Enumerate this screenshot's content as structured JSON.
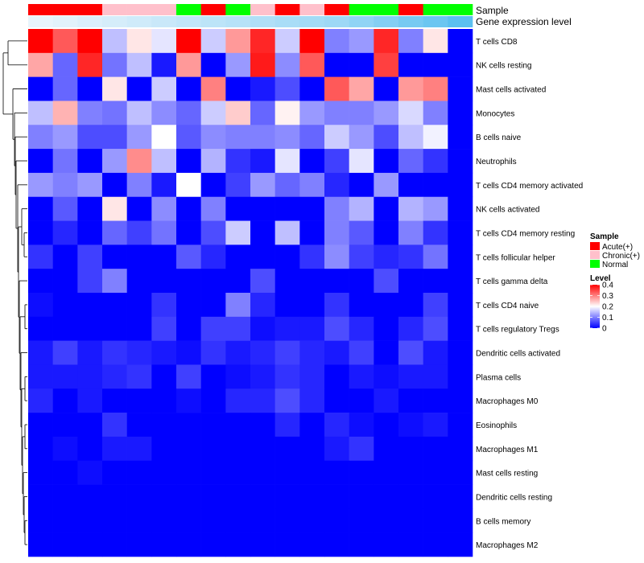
{
  "chart_data": {
    "type": "heatmap",
    "title": "",
    "annotation_labels": {
      "sample": "Sample",
      "gene_expression": "Gene expression level"
    },
    "sample_groups": [
      "Acute(+)",
      "Acute(+)",
      "Acute(+)",
      "Chronic(+)",
      "Chronic(+)",
      "Chronic(+)",
      "Normal",
      "Acute(+)",
      "Normal",
      "Chronic(+)",
      "Acute(+)",
      "Chronic(+)",
      "Acute(+)",
      "Normal",
      "Normal",
      "Acute(+)",
      "Normal",
      "Normal"
    ],
    "gene_expression_level": [
      0.1,
      0.12,
      0.14,
      0.16,
      0.18,
      0.2,
      0.22,
      0.24,
      0.26,
      0.28,
      0.3,
      0.32,
      0.34,
      0.38,
      0.42,
      0.46,
      0.5,
      0.55
    ],
    "rows": [
      "T cells CD8",
      "NK cells resting",
      "Mast cells activated",
      "Monocytes",
      "B cells naive",
      "Neutrophils",
      "T cells CD4 memory activated",
      "NK cells activated",
      "T cells CD4 memory resting",
      "T cells follicular helper",
      "T cells gamma delta",
      "T cells CD4 naive",
      "T cells regulatory  Tregs",
      "Dendritic cells activated",
      "Plasma cells",
      "Macrophages M0",
      "Eosinophils",
      "Macrophages M1",
      "Mast cells resting",
      "Dendritic cells resting",
      "B cells memory",
      "Macrophages M2"
    ],
    "values": [
      [
        0.42,
        0.33,
        0.42,
        0.15,
        0.22,
        0.18,
        0.42,
        0.16,
        0.28,
        0.37,
        0.16,
        0.42,
        0.1,
        0.12,
        0.37,
        0.1,
        0.22,
        0.0
      ],
      [
        0.27,
        0.08,
        0.37,
        0.09,
        0.15,
        0.02,
        0.28,
        0.0,
        0.12,
        0.38,
        0.11,
        0.33,
        0.0,
        0.0,
        0.35,
        0.0,
        0.0,
        0.0
      ],
      [
        0.0,
        0.08,
        0.0,
        0.22,
        0.0,
        0.16,
        0.0,
        0.3,
        0.0,
        0.02,
        0.06,
        0.0,
        0.33,
        0.27,
        0.0,
        0.28,
        0.3,
        0.0
      ],
      [
        0.15,
        0.26,
        0.1,
        0.09,
        0.15,
        0.11,
        0.08,
        0.16,
        0.24,
        0.08,
        0.21,
        0.12,
        0.1,
        0.1,
        0.12,
        0.17,
        0.1,
        0.0
      ],
      [
        0.1,
        0.12,
        0.06,
        0.06,
        0.12,
        0.2,
        0.07,
        0.11,
        0.1,
        0.1,
        0.11,
        0.08,
        0.16,
        0.12,
        0.06,
        0.15,
        0.19,
        0.0
      ],
      [
        0.0,
        0.09,
        0.0,
        0.12,
        0.29,
        0.15,
        0.0,
        0.14,
        0.04,
        0.02,
        0.18,
        0.0,
        0.05,
        0.18,
        0.0,
        0.08,
        0.04,
        0.0
      ],
      [
        0.12,
        0.1,
        0.12,
        0.0,
        0.1,
        0.02,
        0.2,
        0.0,
        0.05,
        0.12,
        0.08,
        0.1,
        0.03,
        0.0,
        0.12,
        0.0,
        0.0,
        0.0
      ],
      [
        0.0,
        0.07,
        0.0,
        0.22,
        0.0,
        0.11,
        0.0,
        0.1,
        0.0,
        0.0,
        0.0,
        0.0,
        0.1,
        0.14,
        0.0,
        0.14,
        0.12,
        0.0
      ],
      [
        0.0,
        0.03,
        0.0,
        0.08,
        0.05,
        0.09,
        0.0,
        0.06,
        0.16,
        0.0,
        0.15,
        0.0,
        0.1,
        0.07,
        0.0,
        0.1,
        0.04,
        0.0
      ],
      [
        0.04,
        0.0,
        0.05,
        0.0,
        0.0,
        0.0,
        0.07,
        0.03,
        0.0,
        0.0,
        0.0,
        0.04,
        0.11,
        0.05,
        0.03,
        0.04,
        0.09,
        0.0
      ],
      [
        0.0,
        0.0,
        0.05,
        0.1,
        0.0,
        0.0,
        0.0,
        0.0,
        0.0,
        0.06,
        0.0,
        0.0,
        0.0,
        0.0,
        0.06,
        0.0,
        0.0,
        0.0
      ],
      [
        0.01,
        0.0,
        0.0,
        0.0,
        0.0,
        0.04,
        0.0,
        0.0,
        0.1,
        0.03,
        0.0,
        0.0,
        0.04,
        0.0,
        0.0,
        0.0,
        0.05,
        0.0
      ],
      [
        0.0,
        0.0,
        0.0,
        0.0,
        0.0,
        0.05,
        0.0,
        0.05,
        0.05,
        0.01,
        0.02,
        0.02,
        0.06,
        0.03,
        0.0,
        0.03,
        0.06,
        0.0
      ],
      [
        0.02,
        0.05,
        0.02,
        0.04,
        0.03,
        0.02,
        0.01,
        0.04,
        0.02,
        0.03,
        0.05,
        0.03,
        0.02,
        0.05,
        0.0,
        0.06,
        0.02,
        0.0
      ],
      [
        0.02,
        0.02,
        0.02,
        0.03,
        0.04,
        0.0,
        0.05,
        0.0,
        0.01,
        0.02,
        0.04,
        0.03,
        0.0,
        0.02,
        0.01,
        0.02,
        0.02,
        0.0
      ],
      [
        0.03,
        0.0,
        0.02,
        0.0,
        0.0,
        0.0,
        0.01,
        0.0,
        0.03,
        0.03,
        0.06,
        0.03,
        0.0,
        0.0,
        0.02,
        0.0,
        0.0,
        0.0
      ],
      [
        0.0,
        0.0,
        0.0,
        0.04,
        0.0,
        0.0,
        0.0,
        0.0,
        0.0,
        0.0,
        0.03,
        0.0,
        0.03,
        0.01,
        0.0,
        0.01,
        0.02,
        0.0
      ],
      [
        0.0,
        0.01,
        0.0,
        0.02,
        0.02,
        0.0,
        0.0,
        0.0,
        0.0,
        0.0,
        0.0,
        0.0,
        0.02,
        0.04,
        0.0,
        0.0,
        0.0,
        0.0
      ],
      [
        0.0,
        0.0,
        0.01,
        0.0,
        0.0,
        0.0,
        0.0,
        0.0,
        0.0,
        0.0,
        0.0,
        0.0,
        0.0,
        0.0,
        0.0,
        0.0,
        0.0,
        0.0
      ],
      [
        0.0,
        0.0,
        0.0,
        0.0,
        0.0,
        0.0,
        0.0,
        0.0,
        0.0,
        0.0,
        0.0,
        0.0,
        0.0,
        0.0,
        0.0,
        0.0,
        0.0,
        0.0
      ],
      [
        0.0,
        0.0,
        0.0,
        0.0,
        0.0,
        0.0,
        0.0,
        0.0,
        0.0,
        0.0,
        0.0,
        0.0,
        0.0,
        0.0,
        0.0,
        0.0,
        0.0,
        0.0
      ],
      [
        0.0,
        0.0,
        0.0,
        0.0,
        0.0,
        0.0,
        0.0,
        0.0,
        0.0,
        0.0,
        0.0,
        0.0,
        0.0,
        0.0,
        0.0,
        0.0,
        0.0,
        0.0
      ]
    ],
    "color_scale": {
      "min": 0,
      "mid": 0.2,
      "max": 0.4,
      "low": "#0000ff",
      "midcolor": "#ffffff",
      "high": "#ff0000"
    },
    "legend": {
      "sample_title": "Sample",
      "sample_items": [
        {
          "label": "Acute(+)",
          "color": "#ff0000"
        },
        {
          "label": "Chronic(+)",
          "color": "#ffc0cb"
        },
        {
          "label": "Normal",
          "color": "#00ff00"
        }
      ],
      "level_title": "Level",
      "level_ticks": [
        {
          "value": 0.4,
          "label": "0.4"
        },
        {
          "value": 0.3,
          "label": "0.3"
        },
        {
          "value": 0.2,
          "label": "0.2"
        },
        {
          "value": 0.1,
          "label": "0.1"
        },
        {
          "value": 0.0,
          "label": "0"
        }
      ],
      "placement": "right"
    },
    "gene_expression_colors": {
      "low": "#e8f4fc",
      "high": "#5bc0f0"
    },
    "row_dendrogram": true
  }
}
